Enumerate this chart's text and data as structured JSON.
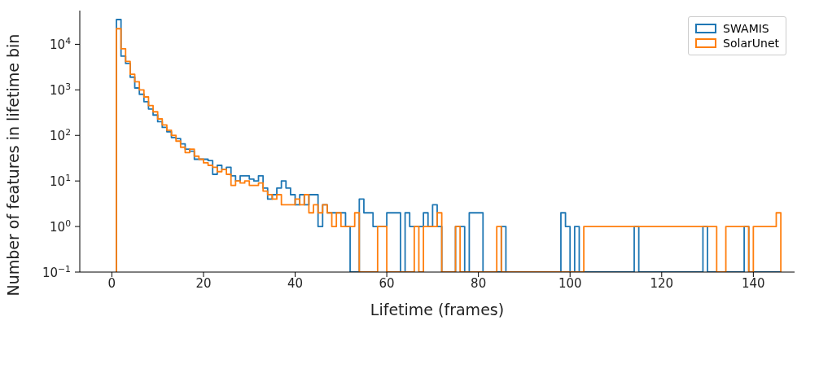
{
  "chart_data": {
    "type": "histogram",
    "xlabel": "Lifetime (frames)",
    "ylabel": "Number of features in lifetime bin",
    "bins": [
      1,
      2,
      3,
      4,
      5,
      6,
      7,
      8,
      9,
      10,
      11,
      12,
      13,
      14,
      15,
      16,
      17,
      18,
      19,
      20,
      21,
      22,
      23,
      24,
      25,
      26,
      27,
      28,
      29,
      30,
      31,
      32,
      33,
      34,
      35,
      36,
      37,
      38,
      39,
      40,
      41,
      42,
      43,
      44,
      45,
      46,
      47,
      48,
      49,
      50,
      51,
      52,
      53,
      54,
      55,
      56,
      57,
      58,
      59,
      60,
      61,
      62,
      63,
      64,
      65,
      66,
      67,
      68,
      69,
      70,
      71,
      72,
      73,
      74,
      75,
      76,
      77,
      78,
      79,
      80,
      81,
      82,
      83,
      84,
      85,
      86,
      87,
      88,
      89,
      90,
      91,
      92,
      93,
      94,
      95,
      96,
      97,
      98,
      99,
      100,
      101,
      102,
      103,
      104,
      105,
      106,
      107,
      108,
      109,
      110,
      111,
      112,
      113,
      114,
      115,
      116,
      117,
      118,
      119,
      120,
      121,
      122,
      123,
      124,
      125,
      126,
      127,
      128,
      129,
      130,
      131,
      132,
      133,
      134,
      135,
      136,
      137,
      138,
      139,
      140,
      141,
      142,
      143,
      144,
      145,
      146
    ],
    "series": [
      {
        "name": "SWAMIS",
        "color": "#1f77b4",
        "values": [
          35000,
          5500,
          3800,
          1900,
          1100,
          800,
          550,
          380,
          280,
          200,
          150,
          120,
          90,
          85,
          65,
          50,
          45,
          30,
          30,
          30,
          28,
          14,
          22,
          18,
          20,
          13,
          10,
          13,
          13,
          11,
          10,
          13,
          7,
          4,
          5,
          7,
          10,
          7,
          5,
          3,
          5,
          3,
          5,
          5,
          1,
          3,
          2,
          2,
          2,
          2,
          1,
          null,
          null,
          4,
          2,
          2,
          1,
          1,
          1,
          2,
          2,
          2,
          null,
          2,
          1,
          1,
          1,
          2,
          1,
          3,
          1,
          null,
          null,
          null,
          1,
          1,
          null,
          2,
          2,
          2,
          null,
          null,
          null,
          null,
          1,
          null,
          null,
          null,
          null,
          null,
          null,
          null,
          null,
          null,
          null,
          null,
          null,
          2,
          1,
          null,
          1,
          null,
          null,
          null,
          null,
          null,
          null,
          null,
          null,
          null,
          null,
          null,
          null,
          1,
          null,
          null,
          null,
          null,
          null,
          null,
          null,
          null,
          null,
          null,
          null,
          null,
          null,
          null,
          1,
          null,
          null,
          null,
          null,
          null,
          null,
          null,
          null,
          1,
          null,
          null,
          null,
          null,
          null,
          null,
          null
        ]
      },
      {
        "name": "SolarUnet",
        "color": "#ff7f0e",
        "values": [
          22000,
          8000,
          4200,
          2200,
          1500,
          1000,
          700,
          450,
          330,
          230,
          170,
          130,
          100,
          75,
          55,
          42,
          50,
          35,
          30,
          25,
          22,
          20,
          16,
          18,
          14,
          8,
          10,
          9,
          10,
          8,
          8,
          9,
          6,
          5,
          4,
          5,
          3,
          3,
          3,
          4,
          3,
          5,
          2,
          3,
          2,
          3,
          2,
          1,
          2,
          1,
          1,
          1,
          2,
          null,
          null,
          null,
          null,
          1,
          1,
          null,
          null,
          null,
          null,
          null,
          null,
          1,
          null,
          1,
          1,
          1,
          2,
          null,
          null,
          null,
          1,
          null,
          null,
          null,
          null,
          null,
          null,
          null,
          null,
          1,
          null,
          null,
          null,
          null,
          null,
          null,
          null,
          null,
          null,
          null,
          null,
          null,
          null,
          null,
          null,
          null,
          null,
          null,
          1,
          1,
          1,
          1,
          1,
          1,
          1,
          1,
          1,
          1,
          1,
          1,
          1,
          1,
          1,
          1,
          1,
          1,
          1,
          1,
          1,
          1,
          1,
          1,
          1,
          1,
          1,
          1,
          1,
          null,
          null,
          1,
          1,
          1,
          1,
          1,
          null,
          1,
          1,
          1,
          1,
          1,
          2
        ]
      }
    ],
    "log": "y",
    "xlim": [
      -7,
      149
    ],
    "xticks": [
      0,
      20,
      40,
      60,
      80,
      100,
      120,
      140
    ],
    "ylim": [
      0.1,
      55000
    ],
    "yticks": [
      {
        "value": 0.1,
        "label": "10$^{−1}$"
      },
      {
        "value": 1,
        "label": "10$^{0}$"
      },
      {
        "value": 10,
        "label": "10$^{1}$"
      },
      {
        "value": 100,
        "label": "10$^{2}$"
      },
      {
        "value": 1000,
        "label": "10$^{3}$"
      },
      {
        "value": 10000,
        "label": "10$^{4}$"
      }
    ],
    "legend": "top right"
  }
}
